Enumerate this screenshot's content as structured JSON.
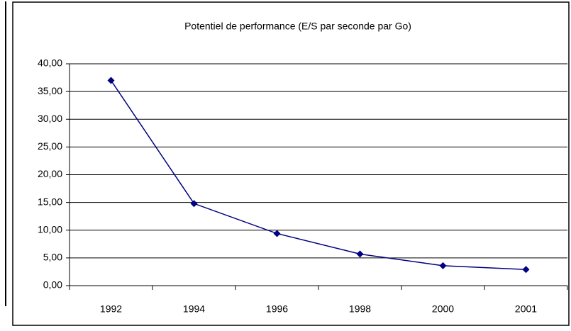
{
  "chart_data": {
    "type": "line",
    "title": "Potentiel de performance (E/S par seconde par Go)",
    "categories": [
      "1992",
      "1994",
      "1996",
      "1998",
      "2000",
      "2001"
    ],
    "values": [
      37.0,
      14.8,
      9.4,
      5.7,
      3.6,
      2.9
    ],
    "color": "#000080",
    "ylim": [
      0,
      40
    ],
    "yticks": [
      {
        "value": 0,
        "label": "0,00"
      },
      {
        "value": 5,
        "label": "5,00"
      },
      {
        "value": 10,
        "label": "10,00"
      },
      {
        "value": 15,
        "label": "15,00"
      },
      {
        "value": 20,
        "label": "20,00"
      },
      {
        "value": 25,
        "label": "25,00"
      },
      {
        "value": 30,
        "label": "30,00"
      },
      {
        "value": 35,
        "label": "35,00"
      },
      {
        "value": 40,
        "label": "40,00"
      }
    ],
    "grid": true
  }
}
